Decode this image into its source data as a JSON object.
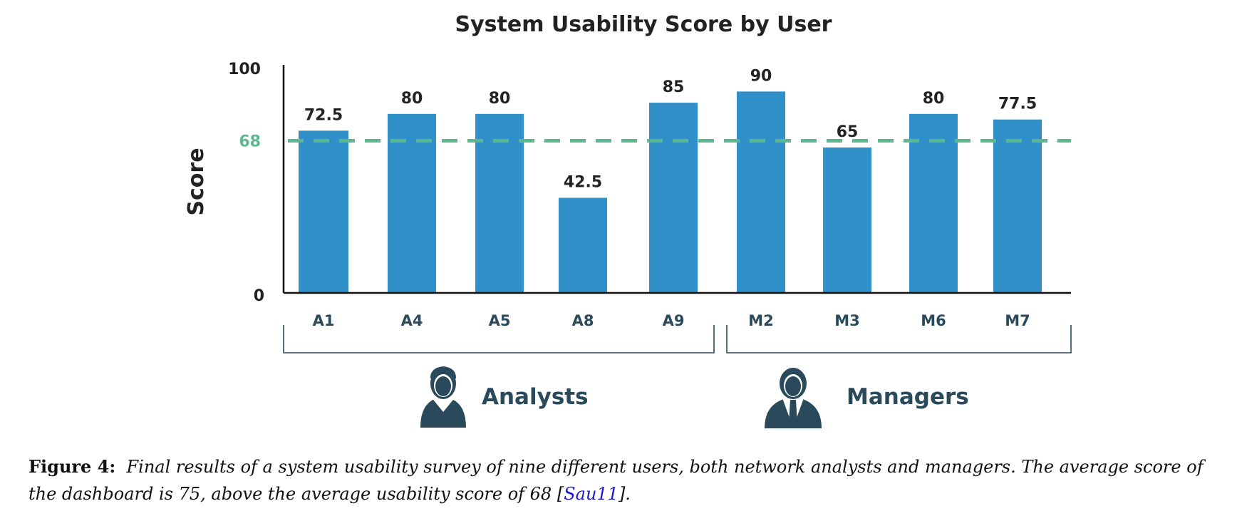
{
  "chart_data": {
    "type": "bar",
    "title": "System Usability Score by User",
    "ylabel": "Score",
    "ylim": [
      0,
      100
    ],
    "yticks": [
      "0",
      "100"
    ],
    "categories": [
      "A1",
      "A4",
      "A5",
      "A8",
      "A9",
      "M2",
      "M3",
      "M6",
      "M7"
    ],
    "values": [
      72.5,
      80,
      80,
      42.5,
      85,
      90,
      65,
      80,
      77.5
    ],
    "value_labels": [
      "72.5",
      "80",
      "80",
      "42.5",
      "85",
      "90",
      "65",
      "80",
      "77.5"
    ],
    "reference_line": {
      "value": 68,
      "label": "68",
      "style": "dashed",
      "color": "#5cb88f"
    },
    "bar_color": "#3290c9",
    "groups": [
      {
        "label": "Analysts",
        "members": [
          "A1",
          "A4",
          "A5",
          "A8",
          "A9"
        ],
        "icon": "analyst-person-icon"
      },
      {
        "label": "Managers",
        "members": [
          "M2",
          "M3",
          "M6",
          "M7"
        ],
        "icon": "manager-person-icon"
      }
    ],
    "grid": false,
    "legend": "none"
  },
  "caption": {
    "figure_label": "Figure 4:",
    "text_before": "Final results of a system usability survey of nine different users, both network analysts and managers. The average score of the dashboard is 75, above the average usability score of 68 [",
    "citation": "Sau11",
    "text_after": "]."
  },
  "colors": {
    "text": "#222222",
    "group_text": "#2a4a5c",
    "icon": "#2a4a5c"
  }
}
